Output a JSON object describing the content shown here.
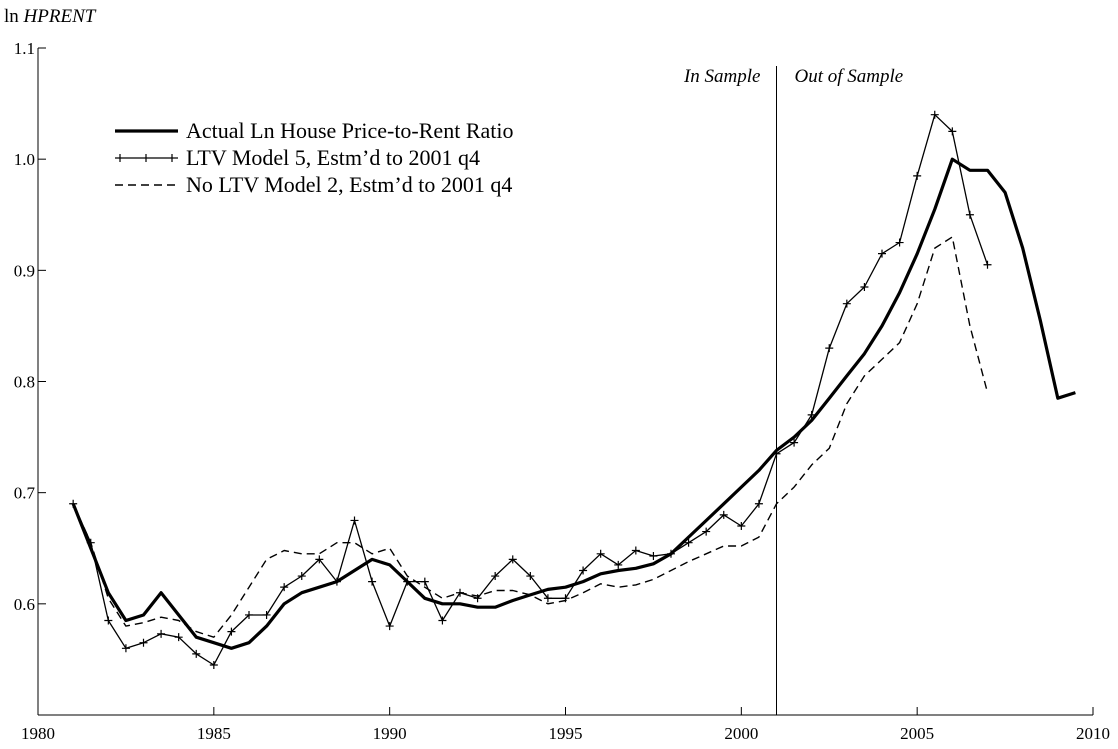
{
  "chart_data": {
    "type": "line",
    "ylabel": [
      "ln",
      "HPRENT"
    ],
    "annotations": [
      "In Sample",
      "Out of Sample"
    ],
    "split_x": 2001,
    "x": [
      1981,
      1981.5,
      1982,
      1982.5,
      1983,
      1983.5,
      1984,
      1984.5,
      1985,
      1985.5,
      1986,
      1986.5,
      1987,
      1987.5,
      1988,
      1988.5,
      1989,
      1989.5,
      1990,
      1990.5,
      1991,
      1991.5,
      1992,
      1992.5,
      1993,
      1993.5,
      1994,
      1994.5,
      1995,
      1995.5,
      1996,
      1996.5,
      1997,
      1997.5,
      1998,
      1998.5,
      1999,
      1999.5,
      2000,
      2000.5,
      2001,
      2001.5,
      2002,
      2002.5,
      2003,
      2003.5,
      2004,
      2004.5,
      2005,
      2005.5,
      2006,
      2006.5,
      2007,
      2007.5,
      2008,
      2008.5,
      2009,
      2009.5
    ],
    "series": [
      {
        "name": "Actual Ln House Price-to-Rent Ratio",
        "color": "#000000",
        "style": "thick",
        "values": [
          0.69,
          0.65,
          0.61,
          0.585,
          0.59,
          0.61,
          0.59,
          0.57,
          0.565,
          0.56,
          0.565,
          0.58,
          0.6,
          0.61,
          0.615,
          0.62,
          0.63,
          0.64,
          0.635,
          0.62,
          0.605,
          0.6,
          0.6,
          0.597,
          0.597,
          0.603,
          0.608,
          0.613,
          0.615,
          0.62,
          0.627,
          0.63,
          0.632,
          0.636,
          0.645,
          0.66,
          0.675,
          0.69,
          0.705,
          0.72,
          0.738,
          0.75,
          0.765,
          0.785,
          0.805,
          0.825,
          0.85,
          0.88,
          0.915,
          0.955,
          1.0,
          0.99,
          0.99,
          0.97,
          0.92,
          0.855,
          0.785,
          0.79
        ]
      },
      {
        "name": "LTV Model 5, Estm’d to 2001 q4",
        "color": "#000000",
        "style": "marker",
        "values": [
          0.69,
          0.655,
          0.585,
          0.56,
          0.565,
          0.573,
          0.57,
          0.555,
          0.545,
          0.575,
          0.59,
          0.59,
          0.615,
          0.625,
          0.64,
          0.62,
          0.675,
          0.62,
          0.58,
          0.62,
          0.62,
          0.585,
          0.61,
          0.605,
          0.625,
          0.64,
          0.625,
          0.605,
          0.605,
          0.63,
          0.645,
          0.635,
          0.648,
          0.643,
          0.645,
          0.655,
          0.665,
          0.68,
          0.67,
          0.69,
          0.735,
          0.745,
          0.77,
          0.83,
          0.87,
          0.885,
          0.915,
          0.925,
          0.985,
          1.04,
          1.025,
          0.95,
          0.905,
          null,
          null,
          null,
          null,
          null
        ]
      },
      {
        "name": "No LTV Model 2, Estm’d to 2001 q4",
        "color": "#000000",
        "style": "dashed",
        "values": [
          0.69,
          0.655,
          0.605,
          0.58,
          0.583,
          0.588,
          0.585,
          0.575,
          0.57,
          0.59,
          0.615,
          0.64,
          0.648,
          0.645,
          0.645,
          0.655,
          0.655,
          0.645,
          0.65,
          0.625,
          0.615,
          0.605,
          0.61,
          0.607,
          0.612,
          0.612,
          0.608,
          0.6,
          0.603,
          0.61,
          0.618,
          0.615,
          0.617,
          0.622,
          0.63,
          0.638,
          0.645,
          0.652,
          0.652,
          0.66,
          0.69,
          0.705,
          0.725,
          0.74,
          0.78,
          0.805,
          0.82,
          0.835,
          0.87,
          0.92,
          0.93,
          0.85,
          0.79,
          null,
          null,
          null,
          null,
          null
        ]
      }
    ],
    "xlim": [
      1980,
      2010
    ],
    "xticks": [
      1980,
      1985,
      1990,
      1995,
      2000,
      2005,
      2010
    ],
    "ylim": [
      0.5,
      1.1
    ],
    "yticks": [
      0.6,
      0.7,
      0.8,
      0.9,
      {
        "value": 1,
        "label": "1.0"
      },
      1.1
    ]
  }
}
